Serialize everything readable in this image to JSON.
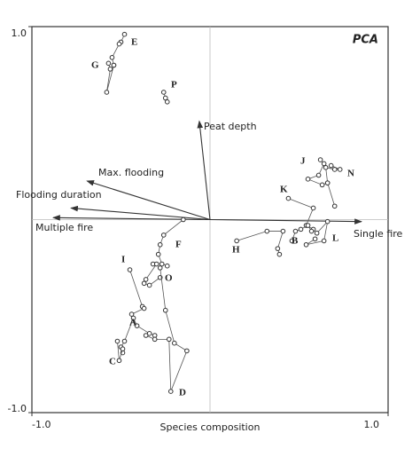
{
  "chart_data": {
    "type": "scatter",
    "title": "PCA",
    "x_label": "Species composition",
    "xlim": [
      -1,
      1
    ],
    "ylim": [
      -1,
      1
    ],
    "xticks": [
      {
        "value": -1,
        "label": "-1.0"
      },
      {
        "value": 1,
        "label": "1.0"
      }
    ],
    "yticks": [
      {
        "value": -1,
        "label": "-1.0"
      },
      {
        "value": 1,
        "label": "1.0"
      }
    ],
    "zero_lines": true,
    "color": "#333333",
    "series": [
      {
        "name": "E",
        "x": [
          -0.48,
          -0.5,
          -0.51,
          -0.55,
          -0.54
        ],
        "y": [
          0.96,
          0.92,
          0.91,
          0.84,
          0.8
        ]
      },
      {
        "name": "G",
        "x": [
          -0.57,
          -0.56,
          -0.58,
          -0.54
        ],
        "y": [
          0.81,
          0.78,
          0.66,
          0.8
        ]
      },
      {
        "name": "P",
        "x": [
          -0.26,
          -0.25,
          -0.24
        ],
        "y": [
          0.66,
          0.63,
          0.61
        ]
      },
      {
        "name": "J",
        "x": [
          0.62,
          0.64,
          0.61,
          0.55,
          0.63,
          0.66
        ],
        "y": [
          0.31,
          0.29,
          0.23,
          0.21,
          0.18,
          0.19
        ]
      },
      {
        "name": "N",
        "x": [
          0.68,
          0.73,
          0.7,
          0.65,
          0.66,
          0.7
        ],
        "y": [
          0.28,
          0.26,
          0.26,
          0.27,
          0.19,
          0.07
        ]
      },
      {
        "name": "K",
        "x": [
          0.44,
          0.58,
          0.54,
          0.58
        ],
        "y": [
          0.11,
          0.06,
          -0.03,
          -0.05
        ]
      },
      {
        "name": "H",
        "x": [
          0.15,
          0.32,
          0.41,
          0.38,
          0.39
        ],
        "y": [
          -0.11,
          -0.06,
          -0.06,
          -0.15,
          -0.18
        ]
      },
      {
        "name": "B",
        "x": [
          0.46,
          0.48,
          0.51,
          0.55,
          0.57
        ],
        "y": [
          -0.11,
          -0.06,
          -0.05,
          -0.03,
          -0.06
        ]
      },
      {
        "name": "L",
        "x": [
          0.6,
          0.66,
          0.64,
          0.54,
          0.59
        ],
        "y": [
          -0.07,
          -0.01,
          -0.11,
          -0.13,
          -0.1
        ]
      },
      {
        "name": "F",
        "x": [
          -0.15,
          -0.26,
          -0.28,
          -0.29,
          -0.27,
          -0.24
        ],
        "y": [
          0.0,
          -0.08,
          -0.13,
          -0.18,
          -0.23,
          -0.24
        ]
      },
      {
        "name": "O",
        "x": [
          -0.32,
          -0.3,
          -0.36,
          -0.37,
          -0.34,
          -0.28
        ],
        "y": [
          -0.23,
          -0.23,
          -0.31,
          -0.33,
          -0.34,
          -0.3
        ]
      },
      {
        "name": "I",
        "x": [
          -0.45,
          -0.38,
          -0.37,
          -0.44,
          -0.41,
          -0.34,
          -0.31
        ],
        "y": [
          -0.26,
          -0.45,
          -0.46,
          -0.49,
          -0.55,
          -0.59,
          -0.6
        ]
      },
      {
        "name": "A",
        "x": [
          -0.43,
          -0.48,
          -0.5,
          -0.49
        ],
        "y": [
          -0.51,
          -0.63,
          -0.66,
          -0.69
        ]
      },
      {
        "name": "C",
        "x": [
          -0.52,
          -0.51,
          -0.49
        ],
        "y": [
          -0.63,
          -0.73,
          -0.67
        ]
      },
      {
        "name": "D",
        "x": [
          -0.28,
          -0.25,
          -0.2,
          -0.13,
          -0.22,
          -0.23,
          -0.31,
          -0.36
        ],
        "y": [
          -0.25,
          -0.47,
          -0.64,
          -0.68,
          -0.89,
          -0.62,
          -0.62,
          -0.6
        ]
      }
    ],
    "vectors": [
      {
        "label": "Peat depth",
        "x": -0.06,
        "y": 0.51
      },
      {
        "label": "Max. flooding",
        "x": -0.69,
        "y": 0.2
      },
      {
        "label": "Flooding duration",
        "x": -0.78,
        "y": 0.06
      },
      {
        "label": "Multiple fire",
        "x": -0.88,
        "y": 0.01
      },
      {
        "label": "Single fire",
        "x": 0.85,
        "y": -0.01
      }
    ]
  }
}
